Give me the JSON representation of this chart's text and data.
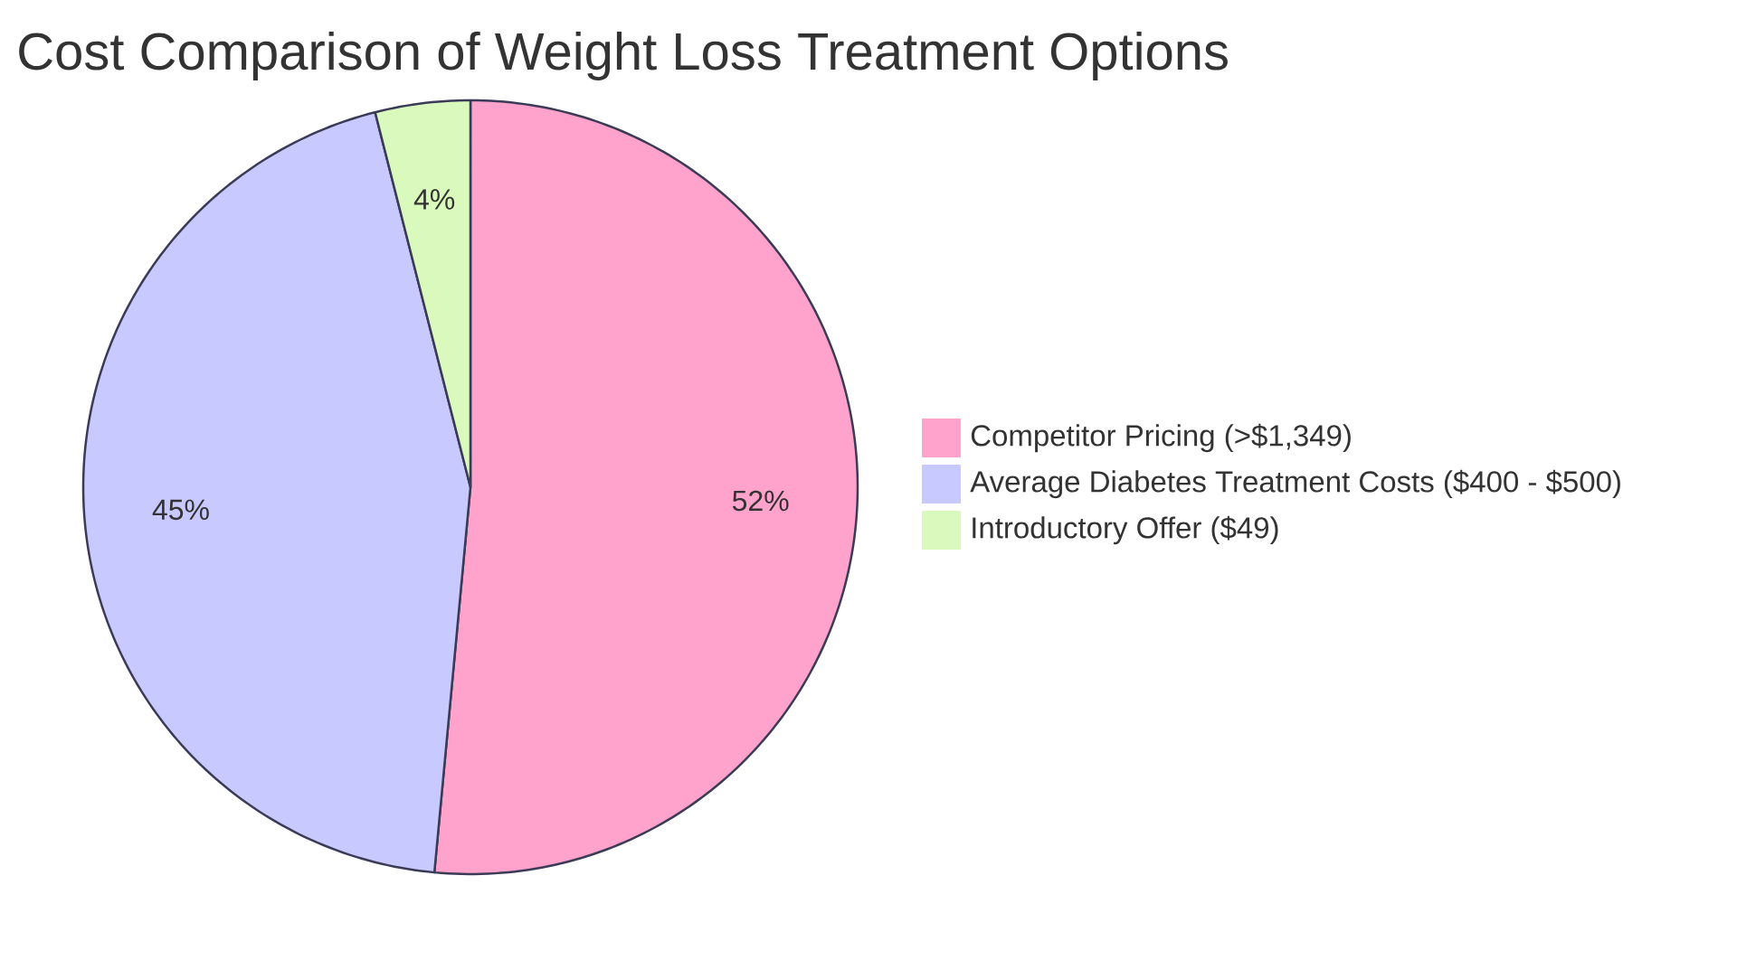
{
  "chart_data": {
    "type": "pie",
    "title": "Cost Comparison of Weight Loss Treatment Options",
    "categories": [
      "Competitor Pricing (>$1,349)",
      "Average Diabetes Treatment Costs ($400 - $500)",
      "Introductory Offer ($49)"
    ],
    "values": [
      52,
      45,
      4
    ],
    "value_labels": [
      "52%",
      "45%",
      "4%"
    ],
    "colors": [
      "#ffa3cd",
      "#c8caff",
      "#daf9bd"
    ],
    "legend": "right"
  }
}
